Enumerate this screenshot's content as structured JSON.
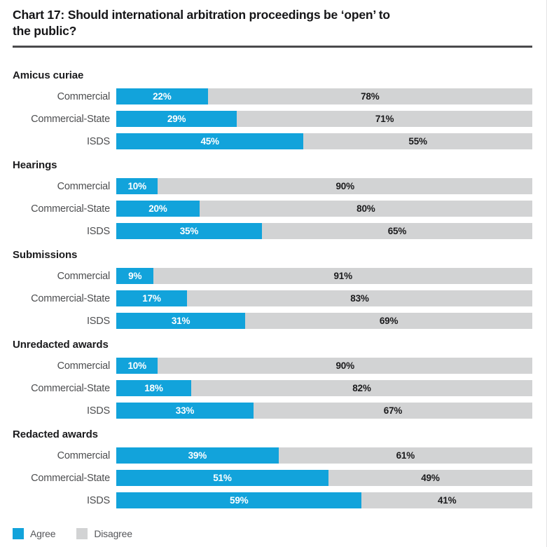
{
  "header": {
    "title": "Chart 17: Should international arbitration proceedings be ‘open’ to the public?",
    "title_lines": [
      "Chart 17: Should international arbitration proceedings be ‘open’ to",
      "the public?"
    ]
  },
  "colors": {
    "agree": "#12A3DB",
    "disagree": "#D2D3D4",
    "rule": "#4A4A4C"
  },
  "legend": [
    {
      "label": "Agree",
      "color_key": "agree"
    },
    {
      "label": "Disagree",
      "color_key": "disagree"
    }
  ],
  "chart_data": {
    "type": "bar",
    "orientation": "horizontal",
    "stacked": true,
    "unit": "%",
    "axis_range": [
      0,
      100
    ],
    "grid": false,
    "legend_position": "bottom-left",
    "title": "Chart 17: Should international arbitration proceedings be ‘open’ to the public?",
    "series_names": [
      "Agree",
      "Disagree"
    ],
    "row_categories": [
      "Commercial",
      "Commercial-State",
      "ISDS"
    ],
    "groups": [
      {
        "label": "Amicus curiae",
        "rows": [
          {
            "category": "Commercial",
            "agree": 22,
            "disagree": 78
          },
          {
            "category": "Commercial-State",
            "agree": 29,
            "disagree": 71
          },
          {
            "category": "ISDS",
            "agree": 45,
            "disagree": 55
          }
        ]
      },
      {
        "label": "Hearings",
        "rows": [
          {
            "category": "Commercial",
            "agree": 10,
            "disagree": 90
          },
          {
            "category": "Commercial-State",
            "agree": 20,
            "disagree": 80
          },
          {
            "category": "ISDS",
            "agree": 35,
            "disagree": 65
          }
        ]
      },
      {
        "label": "Submissions",
        "rows": [
          {
            "category": "Commercial",
            "agree": 9,
            "disagree": 91
          },
          {
            "category": "Commercial-State",
            "agree": 17,
            "disagree": 83
          },
          {
            "category": "ISDS",
            "agree": 31,
            "disagree": 69
          }
        ]
      },
      {
        "label": "Unredacted awards",
        "rows": [
          {
            "category": "Commercial",
            "agree": 10,
            "disagree": 90
          },
          {
            "category": "Commercial-State",
            "agree": 18,
            "disagree": 82
          },
          {
            "category": "ISDS",
            "agree": 33,
            "disagree": 67
          }
        ]
      },
      {
        "label": "Redacted awards",
        "rows": [
          {
            "category": "Commercial",
            "agree": 39,
            "disagree": 61
          },
          {
            "category": "Commercial-State",
            "agree": 51,
            "disagree": 49
          },
          {
            "category": "ISDS",
            "agree": 59,
            "disagree": 41
          }
        ]
      }
    ]
  }
}
